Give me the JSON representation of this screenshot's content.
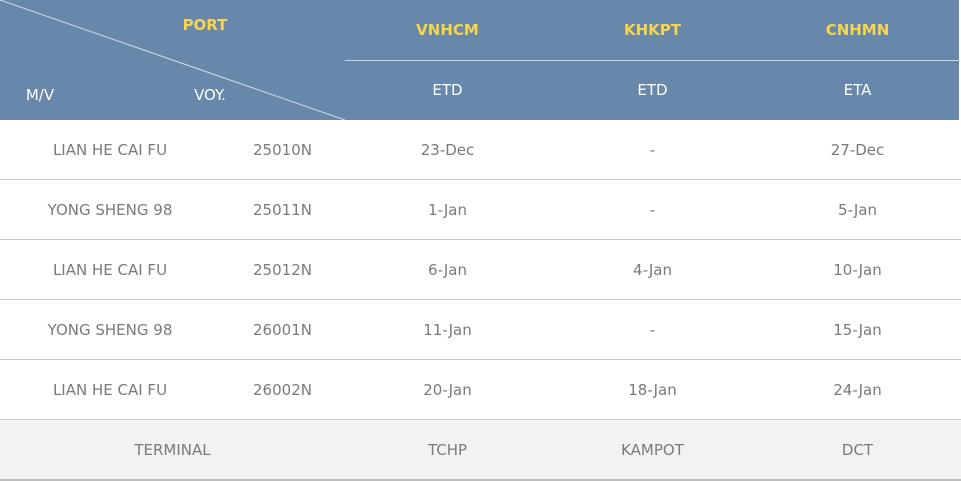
{
  "header": {
    "port_label": "PORT",
    "mv_label": "M/V",
    "voy_label": "VOY.",
    "ports": [
      {
        "code": "VNHCM",
        "type": "ETD"
      },
      {
        "code": "KHKPT",
        "type": "ETD"
      },
      {
        "code": "CNHMN",
        "type": "ETA"
      }
    ]
  },
  "rows": [
    {
      "vessel": "LIAN HE CAI FU",
      "voyage": "25010N",
      "vnhcm": "23-Dec",
      "khkpt": "-",
      "cnhmn": "27-Dec"
    },
    {
      "vessel": "YONG SHENG 98",
      "voyage": "25011N",
      "vnhcm": "1-Jan",
      "khkpt": "-",
      "cnhmn": "5-Jan"
    },
    {
      "vessel": "LIAN HE CAI FU",
      "voyage": "25012N",
      "vnhcm": "6-Jan",
      "khkpt": "4-Jan",
      "cnhmn": "10-Jan"
    },
    {
      "vessel": "YONG SHENG 98",
      "voyage": "26001N",
      "vnhcm": "11-Jan",
      "khkpt": "-",
      "cnhmn": "15-Jan"
    },
    {
      "vessel": "LIAN HE CAI FU",
      "voyage": "26002N",
      "vnhcm": "20-Jan",
      "khkpt": "18-Jan",
      "cnhmn": "24-Jan"
    }
  ],
  "terminal": {
    "label": "TERMINAL",
    "vnhcm": "TCHP",
    "khkpt": "KAMPOT",
    "cnhmn": "DCT"
  },
  "colors": {
    "header_bg": "#6787ab",
    "port_code": "#f7d54c",
    "terminal_bg": "#f2f2f2"
  }
}
